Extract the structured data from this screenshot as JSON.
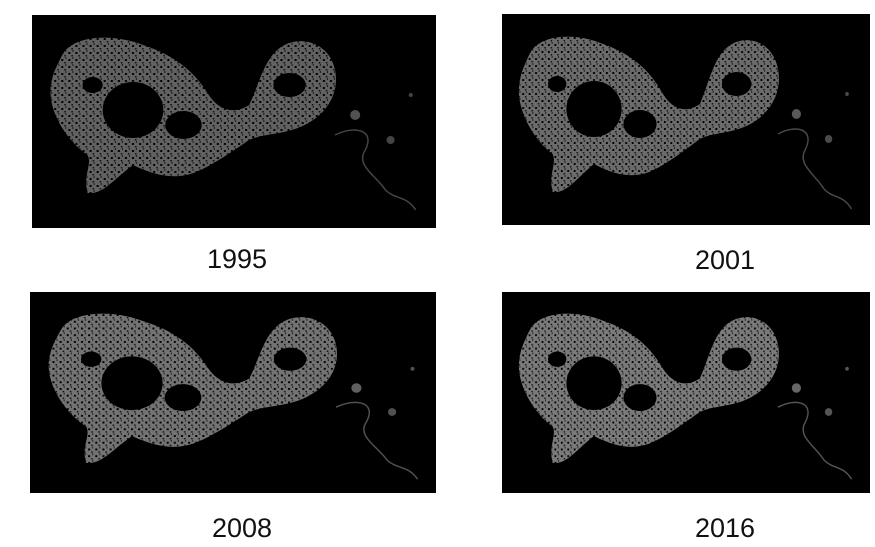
{
  "panels": [
    {
      "label": "1995"
    },
    {
      "label": "2001"
    },
    {
      "label": "2008"
    },
    {
      "label": "2016"
    }
  ]
}
